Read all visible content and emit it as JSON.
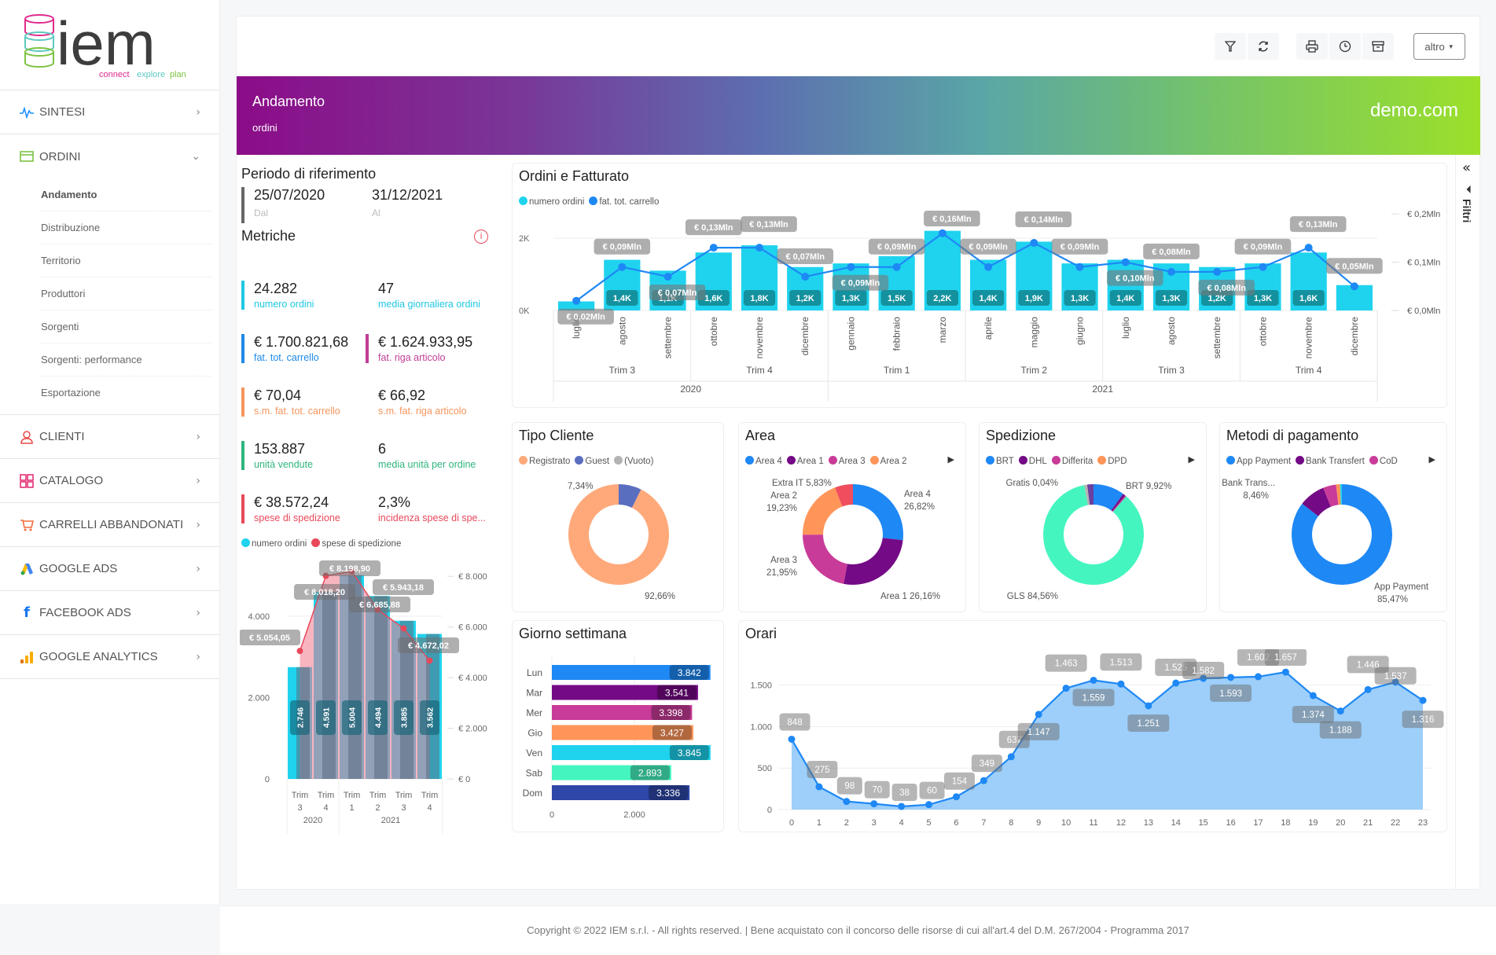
{
  "brand": {
    "logo_text": "iem",
    "tagline_1": "connect",
    "tagline_2": "explore",
    "tagline_3": "plan"
  },
  "sidebar": {
    "items": [
      {
        "label": "SINTESI",
        "icon": "pulse-icon",
        "color": "#1e90ff",
        "expanded": false
      },
      {
        "label": "ORDINI",
        "icon": "card-icon",
        "color": "#7cc242",
        "expanded": true
      },
      {
        "label": "CLIENTI",
        "icon": "user-icon",
        "color": "#e84a4a",
        "expanded": false
      },
      {
        "label": "CATALOGO",
        "icon": "grid-icon",
        "color": "#e0246e",
        "expanded": false
      },
      {
        "label": "CARRELLI ABBANDONATI",
        "icon": "cart-icon",
        "color": "#f26b3a",
        "expanded": false
      },
      {
        "label": "GOOGLE ADS",
        "icon": "google-ads-icon",
        "color": "#4285f4",
        "expanded": false
      },
      {
        "label": "FACEBOOK ADS",
        "icon": "facebook-icon",
        "color": "#1877f2",
        "expanded": false
      },
      {
        "label": "GOOGLE ANALYTICS",
        "icon": "analytics-icon",
        "color": "#f9ab00",
        "expanded": false
      }
    ],
    "ordini_sub": [
      "Andamento",
      "Distribuzione",
      "Territorio",
      "Produttori",
      "Sorgenti",
      "Sorgenti: performance",
      "Esportazione"
    ],
    "active_sub": "Andamento"
  },
  "toolbar": {
    "buttons": [
      "filter-icon",
      "refresh-icon",
      "print-icon",
      "clock-icon",
      "archive-icon"
    ],
    "altro_label": "altro"
  },
  "header": {
    "title": "Andamento",
    "subtitle": "ordini",
    "domain": "demo.com"
  },
  "filters_panel": {
    "label": "Filtri"
  },
  "period": {
    "title": "Periodo di riferimento",
    "from": "25/07/2020",
    "from_label": "Dal",
    "to": "31/12/2021",
    "to_label": "Al"
  },
  "metrics": {
    "title": "Metriche",
    "rows": [
      [
        {
          "value": "24.282",
          "label": "numero ordini",
          "color": "#1fc8e3"
        },
        {
          "value": "47",
          "label": "media giornaliera ordini",
          "color": "#1fc8e3"
        }
      ],
      [
        {
          "value": "€ 1.700.821,68",
          "label": "fat. tot. carrello",
          "color": "#1e88e5"
        },
        {
          "value": "€ 1.624.933,95",
          "label": "fat. riga articolo",
          "color": "#c13e96"
        }
      ],
      [
        {
          "value": "€ 70,04",
          "label": "s.m. fat. tot. carrello",
          "color": "#f4955c"
        },
        {
          "value": "€ 66,92",
          "label": "s.m. fat. riga articolo",
          "color": "#f4955c"
        }
      ],
      [
        {
          "value": "153.887",
          "label": "unità vendute",
          "color": "#2eb57e"
        },
        {
          "value": "6",
          "label": "media unità per ordine",
          "color": "#2eb57e"
        }
      ],
      [
        {
          "value": "€ 38.572,24",
          "label": "spese di spedizione",
          "color": "#e8485a"
        },
        {
          "value": "2,3%",
          "label": "incidenza spese di spe...",
          "color": "#e8485a"
        }
      ]
    ]
  },
  "chart_data": [
    {
      "id": "quarterly",
      "type": "bar",
      "title": "",
      "legend": [
        "numero ordini",
        "spese di spedizione"
      ],
      "categories": [
        "Trim 3 2020",
        "Trim 4 2020",
        "Trim 1 2021",
        "Trim 2 2021",
        "Trim 3 2021",
        "Trim 4 2021"
      ],
      "cat_top": [
        "Trim",
        "Trim",
        "Trim",
        "Trim",
        "Trim",
        "Trim"
      ],
      "cat_num": [
        "3",
        "4",
        "1",
        "2",
        "3",
        "4"
      ],
      "years": [
        {
          "label": "2020",
          "span": 2
        },
        {
          "label": "2021",
          "span": 4
        }
      ],
      "series": [
        {
          "name": "numero ordini",
          "values": [
            2746,
            4591,
            5004,
            4494,
            3885,
            3562
          ],
          "labels": [
            "2.746",
            "4.591",
            "5.004",
            "4.494",
            "3.885",
            "3.562"
          ],
          "color": "#1fd3ee"
        },
        {
          "name": "spese di spedizione",
          "values": [
            5054.05,
            8018.2,
            8198.9,
            6685.88,
            5943.18,
            4672.02
          ],
          "labels": [
            "€ 5.054,05",
            "€ 8.018,20",
            "€ 8.198,90",
            "€ 6.685,88",
            "€ 5.943,18",
            "€ 4.672,02"
          ],
          "color": "#e8485a"
        }
      ],
      "yleft_ticks": [
        "0",
        "2.000",
        "4.000"
      ],
      "yleft_range": [
        0,
        5600
      ],
      "yright_ticks": [
        "€ 0",
        "€ 2.000",
        "€ 4.000",
        "€ 6.000",
        "€ 8.000"
      ],
      "yright_range": [
        0,
        9000
      ]
    },
    {
      "id": "ordini_fatturato",
      "type": "bar",
      "title": "Ordini e Fatturato",
      "legend": [
        "numero ordini",
        "fat. tot. carrello"
      ],
      "categories": [
        "luglio",
        "agosto",
        "settembre",
        "ottobre",
        "novembre",
        "dicembre",
        "gennaio",
        "febbraio",
        "marzo",
        "aprile",
        "maggio",
        "giugno",
        "luglio",
        "agosto",
        "settembre",
        "ottobre",
        "novembre",
        "dicembre"
      ],
      "quarters": [
        {
          "label": "Trim 3",
          "span": 3
        },
        {
          "label": "Trim 4",
          "span": 3
        },
        {
          "label": "Trim 1",
          "span": 3
        },
        {
          "label": "Trim 2",
          "span": 3
        },
        {
          "label": "Trim 3",
          "span": 3
        },
        {
          "label": "Trim 4",
          "span": 3
        }
      ],
      "years": [
        {
          "label": "2020",
          "span": 6
        },
        {
          "label": "2021",
          "span": 12
        }
      ],
      "series": [
        {
          "name": "numero ordini",
          "values": [
            250,
            1400,
            1100,
            1600,
            1800,
            1200,
            1300,
            1500,
            2200,
            1400,
            1900,
            1300,
            1400,
            1300,
            1200,
            1300,
            1600,
            700
          ],
          "labels": [
            "",
            "1,4K",
            "1,1K",
            "1,6K",
            "1,8K",
            "1,2K",
            "1,3K",
            "1,5K",
            "2,2K",
            "1,4K",
            "1,9K",
            "1,3K",
            "1,4K",
            "1,3K",
            "1,2K",
            "1,3K",
            "1,6K",
            ""
          ],
          "color": "#1fd3ee"
        },
        {
          "name": "fat. tot. carrello",
          "values": [
            0.02,
            0.09,
            0.07,
            0.13,
            0.13,
            0.07,
            0.09,
            0.09,
            0.16,
            0.09,
            0.14,
            0.09,
            0.1,
            0.08,
            0.08,
            0.09,
            0.13,
            0.05
          ],
          "labels": [
            "€ 0,02Mln",
            "€ 0,09Mln",
            "€ 0,07Mln",
            "€ 0,13Mln",
            "€ 0,13Mln",
            "€ 0,07Mln",
            "€ 0,09Mln",
            "€ 0,09Mln",
            "€ 0,16Mln",
            "€ 0,09Mln",
            "€ 0,14Mln",
            "€ 0,09Mln",
            "€ 0,10Mln",
            "€ 0,08Mln",
            "€ 0,08Mln",
            "€ 0,09Mln",
            "€ 0,13Mln",
            "€ 0,05Mln"
          ],
          "color": "#1e88f5"
        }
      ],
      "yleft_ticks": [
        "0K",
        "2K"
      ],
      "yleft_range": [
        0,
        2800
      ],
      "yright_ticks": [
        "€ 0,0Mln",
        "€ 0,1Mln",
        "€ 0,2Mln"
      ],
      "yright_range": [
        0,
        0.21
      ]
    },
    {
      "id": "tipo_cliente",
      "type": "pie",
      "title": "Tipo Cliente",
      "legend": [
        {
          "name": "Registrato",
          "color": "#ffa97a"
        },
        {
          "name": "Guest",
          "color": "#5a6ec0"
        },
        {
          "name": "(Vuoto)",
          "color": "#b3b3b3"
        }
      ],
      "slices": [
        {
          "name": "Guest",
          "value": 7.34,
          "color": "#5a6ec0",
          "label": "7,34%"
        },
        {
          "name": "Registrato",
          "value": 92.66,
          "color": "#ffa97a",
          "label": "92,66%"
        }
      ]
    },
    {
      "id": "area",
      "type": "pie",
      "title": "Area",
      "legend": [
        {
          "name": "Area 4",
          "color": "#1e88f5"
        },
        {
          "name": "Area 1",
          "color": "#740a85"
        },
        {
          "name": "Area 3",
          "color": "#c93b98"
        },
        {
          "name": "Area 2",
          "color": "#ff9559"
        }
      ],
      "slices": [
        {
          "name": "Area 4",
          "value": 26.82,
          "color": "#1e88f5",
          "label": "Area 4 26,82%"
        },
        {
          "name": "Area 1",
          "value": 26.16,
          "color": "#740a85",
          "label": "Area 1 26,16%"
        },
        {
          "name": "Area 3",
          "value": 21.95,
          "color": "#c93b98",
          "label": "Area 3 21,95%"
        },
        {
          "name": "Area 2",
          "value": 19.23,
          "color": "#ff9559",
          "label": "Area 2 19,23%"
        },
        {
          "name": "Extra IT",
          "value": 5.83,
          "color": "#f04e5e",
          "label": "Extra IT 5,83%"
        }
      ]
    },
    {
      "id": "spedizione",
      "type": "pie",
      "title": "Spedizione",
      "legend": [
        {
          "name": "BRT",
          "color": "#1e88f5"
        },
        {
          "name": "DHL",
          "color": "#740a85"
        },
        {
          "name": "Differita",
          "color": "#c93b98"
        },
        {
          "name": "DPD",
          "color": "#ff9559"
        }
      ],
      "slices": [
        {
          "name": "BRT",
          "value": 9.92,
          "color": "#1e88f5",
          "label": "BRT 9,92%"
        },
        {
          "name": "DHL",
          "value": 0.8,
          "color": "#740a85",
          "label": ""
        },
        {
          "name": "Differita",
          "value": 0.4,
          "color": "#c93b98",
          "label": ""
        },
        {
          "name": "GLS",
          "value": 84.56,
          "color": "#45f5c0",
          "label": "GLS 84,56%"
        },
        {
          "name": "Altro",
          "value": 0.9,
          "color": "#b3b3b3",
          "label": ""
        },
        {
          "name": "Gratis",
          "value": 0.04,
          "color": "#f5e85a",
          "label": "Gratis 0,04%"
        },
        {
          "name": "Altro2",
          "value": 2.0,
          "color": "#6b3fa0",
          "label": ""
        }
      ]
    },
    {
      "id": "pagamento",
      "type": "pie",
      "title": "Metodi di pagamento",
      "legend": [
        {
          "name": "App Payment",
          "color": "#1e88f5"
        },
        {
          "name": "Bank Transfert",
          "color": "#740a85"
        },
        {
          "name": "CoD",
          "color": "#c93b98"
        }
      ],
      "slices": [
        {
          "name": "App Payment",
          "value": 85.47,
          "color": "#1e88f5",
          "label": "App Payment 85,47%"
        },
        {
          "name": "Bank Transfert",
          "value": 8.46,
          "color": "#740a85",
          "label": "Bank Trans... 8,46%"
        },
        {
          "name": "CoD",
          "value": 4.2,
          "color": "#c93b98",
          "label": ""
        },
        {
          "name": "Altro",
          "value": 1.3,
          "color": "#ff9559",
          "label": ""
        },
        {
          "name": "Altro2",
          "value": 0.57,
          "color": "#1fd3ee",
          "label": ""
        }
      ]
    },
    {
      "id": "giorno",
      "type": "bar",
      "title": "Giorno settimana",
      "orientation": "horizontal",
      "categories": [
        "Lun",
        "Mar",
        "Mer",
        "Gio",
        "Ven",
        "Sab",
        "Dom"
      ],
      "values": [
        3842,
        3541,
        3398,
        3427,
        3845,
        2893,
        3336
      ],
      "labels": [
        "3.842",
        "3.541",
        "3.398",
        "3.427",
        "3.845",
        "2.893",
        "3.336"
      ],
      "colors": [
        "#1e88f5",
        "#740a85",
        "#c93b98",
        "#ff9559",
        "#1fd3ee",
        "#45f5c0",
        "#2e47a8"
      ],
      "xticks": [
        "0",
        "2.000"
      ],
      "xlim": [
        0,
        4000
      ]
    },
    {
      "id": "orari",
      "type": "area",
      "title": "Orari",
      "x": [
        "0",
        "1",
        "2",
        "3",
        "4",
        "5",
        "6",
        "7",
        "8",
        "9",
        "10",
        "11",
        "12",
        "13",
        "14",
        "15",
        "16",
        "17",
        "18",
        "19",
        "20",
        "21",
        "22",
        "23"
      ],
      "values": [
        848,
        275,
        98,
        70,
        38,
        60,
        154,
        349,
        637,
        1147,
        1463,
        1559,
        1513,
        1251,
        1525,
        1582,
        1593,
        1602,
        1657,
        1374,
        1188,
        1446,
        1537,
        1316
      ],
      "labels": [
        "848",
        "275",
        "98",
        "70",
        "38",
        "60",
        "154",
        "349",
        "637",
        "1.147",
        "1.463",
        "1.559",
        "1.513",
        "1.251",
        "1.525",
        "1.582",
        "1.593",
        "1.602",
        "1.657",
        "1.374",
        "1.188",
        "1.446",
        "1.537",
        "1.316"
      ],
      "yticks": [
        "0",
        "500",
        "1.000",
        "1.500"
      ],
      "ylim": [
        0,
        1800
      ]
    }
  ],
  "footer": {
    "text": "Copyright © 2022 IEM s.r.l. - All rights reserved. | Bene acquistato con il concorso delle risorse di cui all'art.4 del D.M. 267/2004 - Programma 2017"
  }
}
